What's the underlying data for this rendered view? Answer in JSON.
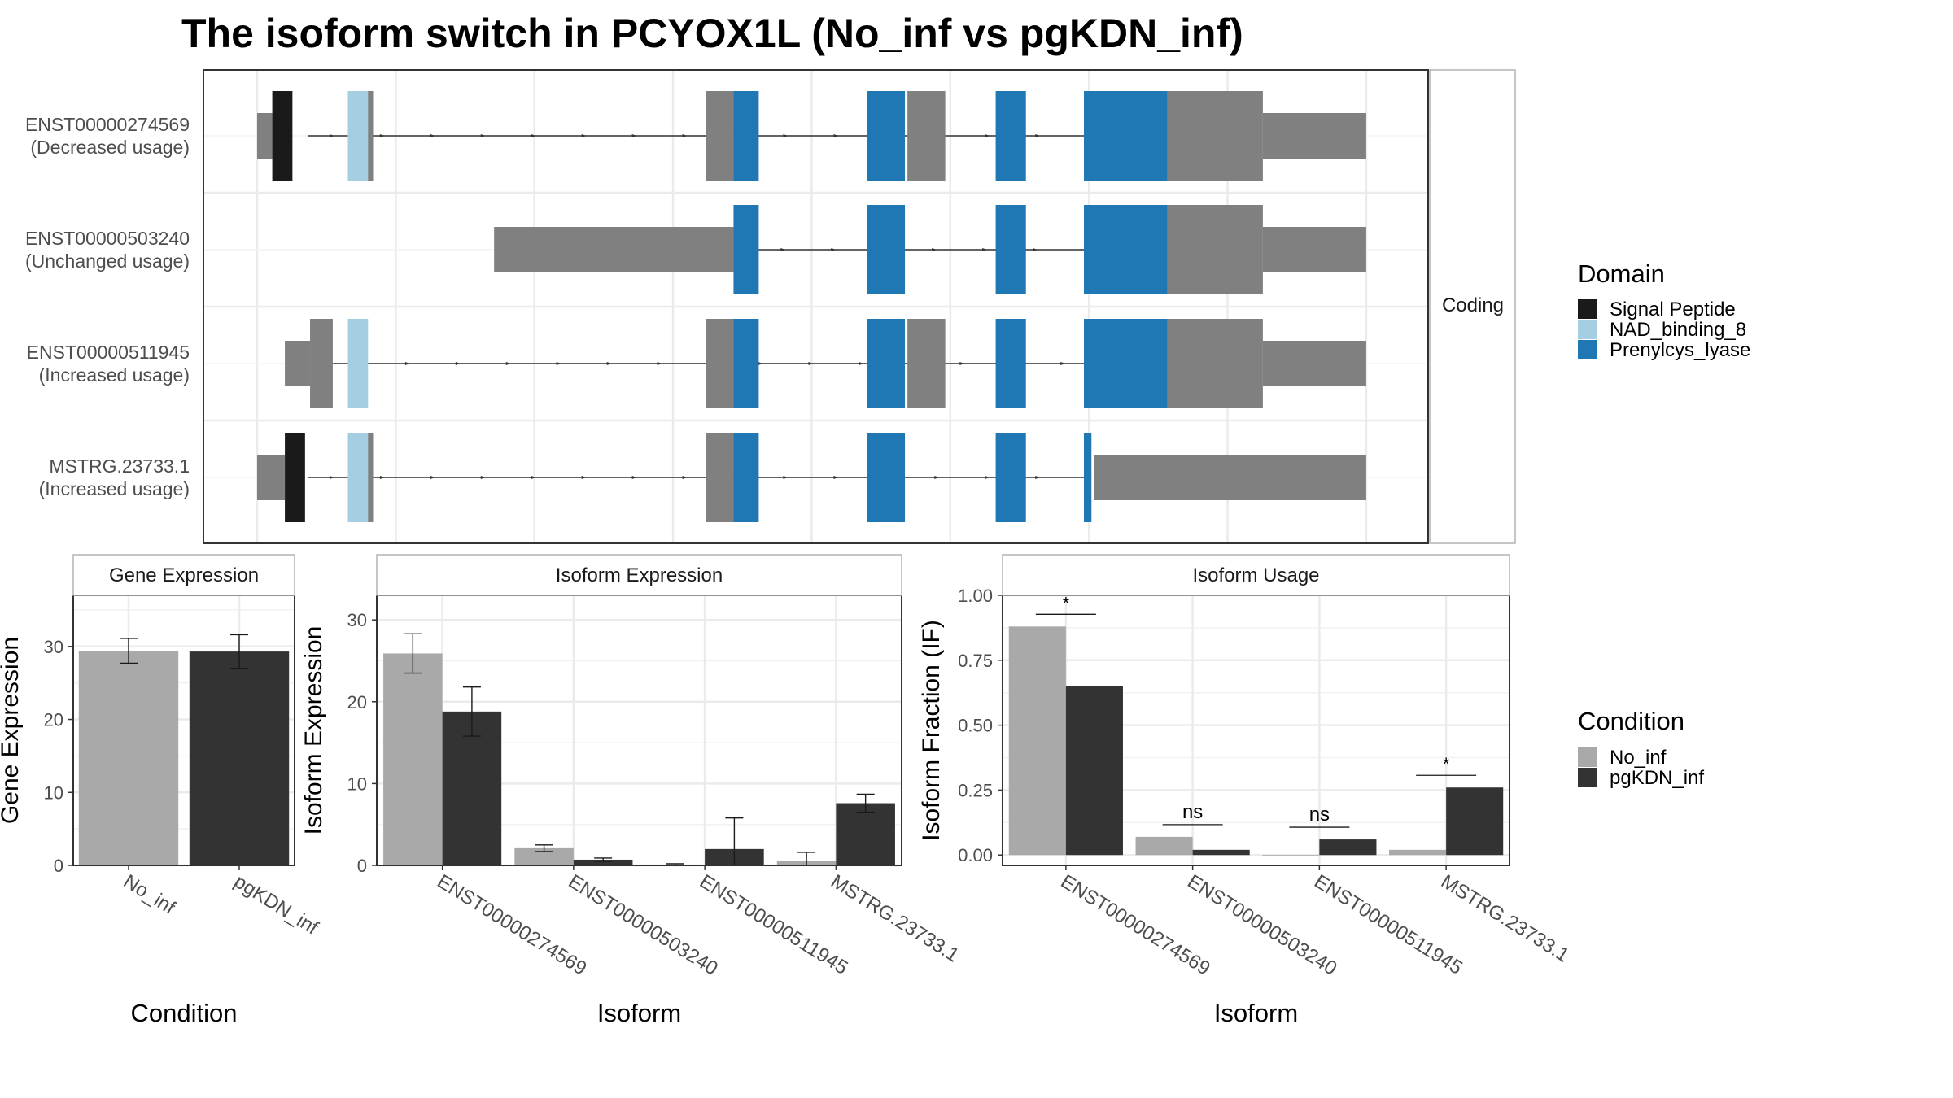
{
  "title": "The isoform switch in PCYOX1L (No_inf vs pgKDN_inf)",
  "chart_data": [
    {
      "type": "transcript_structure",
      "facet_label": "Coding",
      "transcripts": [
        {
          "id": "ENST00000274569",
          "usage": "(Decreased usage)",
          "utr_blocks": [
            [
              0,
              30
            ],
            [
              180,
              230
            ],
            [
              890,
              945
            ],
            [
              1290,
              1365
            ],
            [
              1795,
              1995
            ],
            [
              1995,
              2200
            ]
          ],
          "domain_blocks": [
            {
              "domain": "Signal Peptide",
              "range": [
                30,
                70
              ]
            },
            {
              "domain": "NAD_binding_8",
              "range": [
                180,
                220
              ]
            },
            {
              "domain": "Prenylcys_lyase",
              "range": [
                945,
                995
              ]
            },
            {
              "domain": "Prenylcys_lyase",
              "range": [
                1210,
                1285
              ]
            },
            {
              "domain": "Prenylcys_lyase",
              "range": [
                1465,
                1525
              ]
            },
            {
              "domain": "Prenylcys_lyase",
              "range": [
                1640,
                1805
              ]
            }
          ],
          "intron": [
            100,
            1640
          ]
        },
        {
          "id": "ENST00000503240",
          "usage": "(Unchanged usage)",
          "utr_blocks": [
            [
              470,
              945
            ],
            [
              1795,
              1995
            ],
            [
              1995,
              2200
            ]
          ],
          "domain_blocks": [
            {
              "domain": "Prenylcys_lyase",
              "range": [
                945,
                995
              ]
            },
            {
              "domain": "Prenylcys_lyase",
              "range": [
                1210,
                1285
              ]
            },
            {
              "domain": "Prenylcys_lyase",
              "range": [
                1465,
                1525
              ]
            },
            {
              "domain": "Prenylcys_lyase",
              "range": [
                1640,
                1805
              ]
            }
          ],
          "intron": [
            995,
            1640
          ]
        },
        {
          "id": "ENST00000511945",
          "usage": "(Increased usage)",
          "utr_blocks": [
            [
              55,
              105
            ],
            [
              105,
              150
            ],
            [
              890,
              945
            ],
            [
              1290,
              1365
            ],
            [
              1795,
              1995
            ],
            [
              1995,
              2200
            ]
          ],
          "domain_blocks": [
            {
              "domain": "NAD_binding_8",
              "range": [
                180,
                220
              ]
            },
            {
              "domain": "Prenylcys_lyase",
              "range": [
                945,
                995
              ]
            },
            {
              "domain": "Prenylcys_lyase",
              "range": [
                1210,
                1285
              ]
            },
            {
              "domain": "Prenylcys_lyase",
              "range": [
                1465,
                1525
              ]
            },
            {
              "domain": "Prenylcys_lyase",
              "range": [
                1640,
                1805
              ]
            }
          ],
          "intron": [
            150,
            1640
          ]
        },
        {
          "id": "MSTRG.23733.1",
          "usage": "(Increased usage)",
          "utr_blocks": [
            [
              0,
              55
            ],
            [
              180,
              230
            ],
            [
              890,
              945
            ],
            [
              1660,
              2200
            ]
          ],
          "domain_blocks": [
            {
              "domain": "Signal Peptide",
              "range": [
                55,
                95
              ]
            },
            {
              "domain": "NAD_binding_8",
              "range": [
                180,
                220
              ]
            },
            {
              "domain": "Prenylcys_lyase",
              "range": [
                945,
                995
              ]
            },
            {
              "domain": "Prenylcys_lyase",
              "range": [
                1210,
                1285
              ]
            },
            {
              "domain": "Prenylcys_lyase",
              "range": [
                1465,
                1525
              ]
            },
            {
              "domain": "Prenylcys_lyase",
              "range": [
                1640,
                1655
              ]
            }
          ],
          "intron": [
            100,
            1640
          ]
        }
      ],
      "legend": {
        "title": "Domain",
        "entries": [
          {
            "name": "Signal Peptide",
            "color": "#1a1a1a"
          },
          {
            "name": "NAD_binding_8",
            "color": "#a6cee3"
          },
          {
            "name": "Prenylcys_lyase",
            "color": "#1f78b4"
          }
        ]
      }
    },
    {
      "type": "bar",
      "strip": "Gene Expression",
      "xlabel": "Condition",
      "ylabel": "Gene Expression",
      "ylim": [
        0,
        37
      ],
      "yticks": [
        0,
        10,
        20,
        30
      ],
      "categories": [
        "No_inf",
        "pgKDN_inf"
      ],
      "values": [
        29.4,
        29.3
      ],
      "errors": [
        1.7,
        2.3
      ]
    },
    {
      "type": "bar",
      "strip": "Isoform Expression",
      "xlabel": "Isoform",
      "ylabel": "Isoform Expression",
      "ylim": [
        0,
        33
      ],
      "yticks": [
        0,
        10,
        20,
        30
      ],
      "categories": [
        "ENST00000274569",
        "ENST00000503240",
        "ENST00000511945",
        "MSTRG.23733.1"
      ],
      "series": [
        {
          "name": "No_inf",
          "values": [
            25.9,
            2.1,
            0.1,
            0.6
          ],
          "errors": [
            2.4,
            0.4,
            0.1,
            1.0
          ]
        },
        {
          "name": "pgKDN_inf",
          "values": [
            18.8,
            0.7,
            2.0,
            7.6
          ],
          "errors": [
            3.0,
            0.2,
            3.8,
            1.1
          ]
        }
      ]
    },
    {
      "type": "bar",
      "strip": "Isoform Usage",
      "xlabel": "Isoform",
      "ylabel": "Isoform Fraction (IF)",
      "ylim": [
        -0.04,
        1.0
      ],
      "yticks": [
        0.0,
        0.25,
        0.5,
        0.75,
        1.0
      ],
      "yticklabels": [
        "0.00",
        "0.25",
        "0.50",
        "0.75",
        "1.00"
      ],
      "categories": [
        "ENST00000274569",
        "ENST00000503240",
        "ENST00000511945",
        "MSTRG.23733.1"
      ],
      "series": [
        {
          "name": "No_inf",
          "values": [
            0.88,
            0.07,
            0.0,
            0.02
          ]
        },
        {
          "name": "pgKDN_inf",
          "values": [
            0.65,
            0.02,
            0.06,
            0.26
          ]
        }
      ],
      "annotations": [
        "*",
        "ns",
        "ns",
        "*"
      ]
    }
  ],
  "condition_legend": {
    "title": "Condition",
    "entries": [
      {
        "name": "No_inf",
        "color": "#a9a9a9"
      },
      {
        "name": "pgKDN_inf",
        "color": "#333333"
      }
    ]
  }
}
